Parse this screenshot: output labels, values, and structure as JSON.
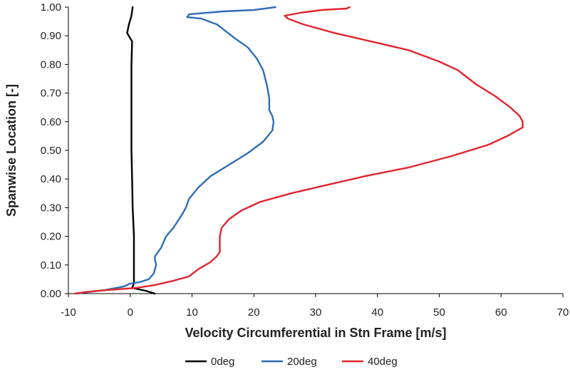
{
  "chart_data": {
    "type": "line",
    "xlabel": "Velocity Circumferential in Stn Frame [m/s]",
    "ylabel": "Spanwise Location [-]",
    "xlim": [
      -10,
      70
    ],
    "ylim": [
      0,
      1
    ],
    "x_ticks": [
      "-10",
      "0",
      "10",
      "20",
      "30",
      "40",
      "50",
      "60",
      "70"
    ],
    "y_ticks": [
      "0.00",
      "0.10",
      "0.20",
      "0.30",
      "0.40",
      "0.50",
      "0.60",
      "0.70",
      "0.80",
      "0.90",
      "1.00"
    ],
    "grid": false,
    "legend_position": "bottom",
    "series": [
      {
        "name": "0deg",
        "color": "#000000",
        "points": [
          [
            4.0,
            0.0
          ],
          [
            2.5,
            0.01
          ],
          [
            0.3,
            0.02
          ],
          [
            0.5,
            0.03
          ],
          [
            0.6,
            0.04
          ],
          [
            0.6,
            0.1
          ],
          [
            0.6,
            0.2
          ],
          [
            0.4,
            0.3
          ],
          [
            0.3,
            0.4
          ],
          [
            0.2,
            0.5
          ],
          [
            0.2,
            0.6
          ],
          [
            0.2,
            0.7
          ],
          [
            0.2,
            0.8
          ],
          [
            0.3,
            0.88
          ],
          [
            -0.5,
            0.91
          ],
          [
            -0.2,
            0.94
          ],
          [
            0.2,
            0.97
          ],
          [
            0.4,
            1.0
          ]
        ]
      },
      {
        "name": "20deg",
        "color": "#2e6db5",
        "points": [
          [
            -8.5,
            0.0
          ],
          [
            -7.0,
            0.005
          ],
          [
            -4.0,
            0.013
          ],
          [
            -1.0,
            0.025
          ],
          [
            0.0,
            0.035
          ],
          [
            1.5,
            0.04
          ],
          [
            3.0,
            0.05
          ],
          [
            3.8,
            0.07
          ],
          [
            4.2,
            0.1
          ],
          [
            4.0,
            0.12
          ],
          [
            4.0,
            0.13
          ],
          [
            5.0,
            0.16
          ],
          [
            5.8,
            0.2
          ],
          [
            7.0,
            0.23
          ],
          [
            8.5,
            0.28
          ],
          [
            9.0,
            0.3
          ],
          [
            9.5,
            0.33
          ],
          [
            11.0,
            0.37
          ],
          [
            13.0,
            0.41
          ],
          [
            16.0,
            0.45
          ],
          [
            19.0,
            0.49
          ],
          [
            21.5,
            0.53
          ],
          [
            23.0,
            0.57
          ],
          [
            23.2,
            0.6
          ],
          [
            23.0,
            0.62
          ],
          [
            22.5,
            0.64
          ],
          [
            22.5,
            0.68
          ],
          [
            22.2,
            0.72
          ],
          [
            21.5,
            0.78
          ],
          [
            20.5,
            0.82
          ],
          [
            19.0,
            0.86
          ],
          [
            17.0,
            0.89
          ],
          [
            14.0,
            0.94
          ],
          [
            11.5,
            0.96
          ],
          [
            9.2,
            0.965
          ],
          [
            9.5,
            0.975
          ],
          [
            15.0,
            0.985
          ],
          [
            20.0,
            0.99
          ],
          [
            23.5,
            1.0
          ]
        ]
      },
      {
        "name": "40deg",
        "color": "#e0252e",
        "points": [
          [
            -9.0,
            0.0
          ],
          [
            -7.0,
            0.006
          ],
          [
            -4.0,
            0.012
          ],
          [
            1.0,
            0.02
          ],
          [
            4.0,
            0.03
          ],
          [
            7.0,
            0.045
          ],
          [
            9.5,
            0.06
          ],
          [
            11.0,
            0.085
          ],
          [
            13.0,
            0.11
          ],
          [
            14.0,
            0.13
          ],
          [
            14.5,
            0.145
          ],
          [
            14.5,
            0.2
          ],
          [
            14.8,
            0.23
          ],
          [
            16.0,
            0.26
          ],
          [
            18.0,
            0.29
          ],
          [
            21.0,
            0.32
          ],
          [
            26.0,
            0.35
          ],
          [
            32.0,
            0.38
          ],
          [
            38.0,
            0.41
          ],
          [
            45.0,
            0.44
          ],
          [
            52.0,
            0.48
          ],
          [
            58.0,
            0.52
          ],
          [
            61.0,
            0.55
          ],
          [
            63.5,
            0.58
          ],
          [
            63.5,
            0.6
          ],
          [
            63.0,
            0.62
          ],
          [
            61.5,
            0.65
          ],
          [
            59.0,
            0.69
          ],
          [
            56.0,
            0.73
          ],
          [
            53.0,
            0.78
          ],
          [
            50.0,
            0.81
          ],
          [
            45.0,
            0.85
          ],
          [
            39.0,
            0.88
          ],
          [
            33.0,
            0.91
          ],
          [
            28.0,
            0.94
          ],
          [
            25.5,
            0.96
          ],
          [
            25.0,
            0.97
          ],
          [
            27.5,
            0.98
          ],
          [
            31.0,
            0.99
          ],
          [
            35.0,
            0.995
          ],
          [
            35.5,
            1.0
          ]
        ]
      }
    ]
  }
}
